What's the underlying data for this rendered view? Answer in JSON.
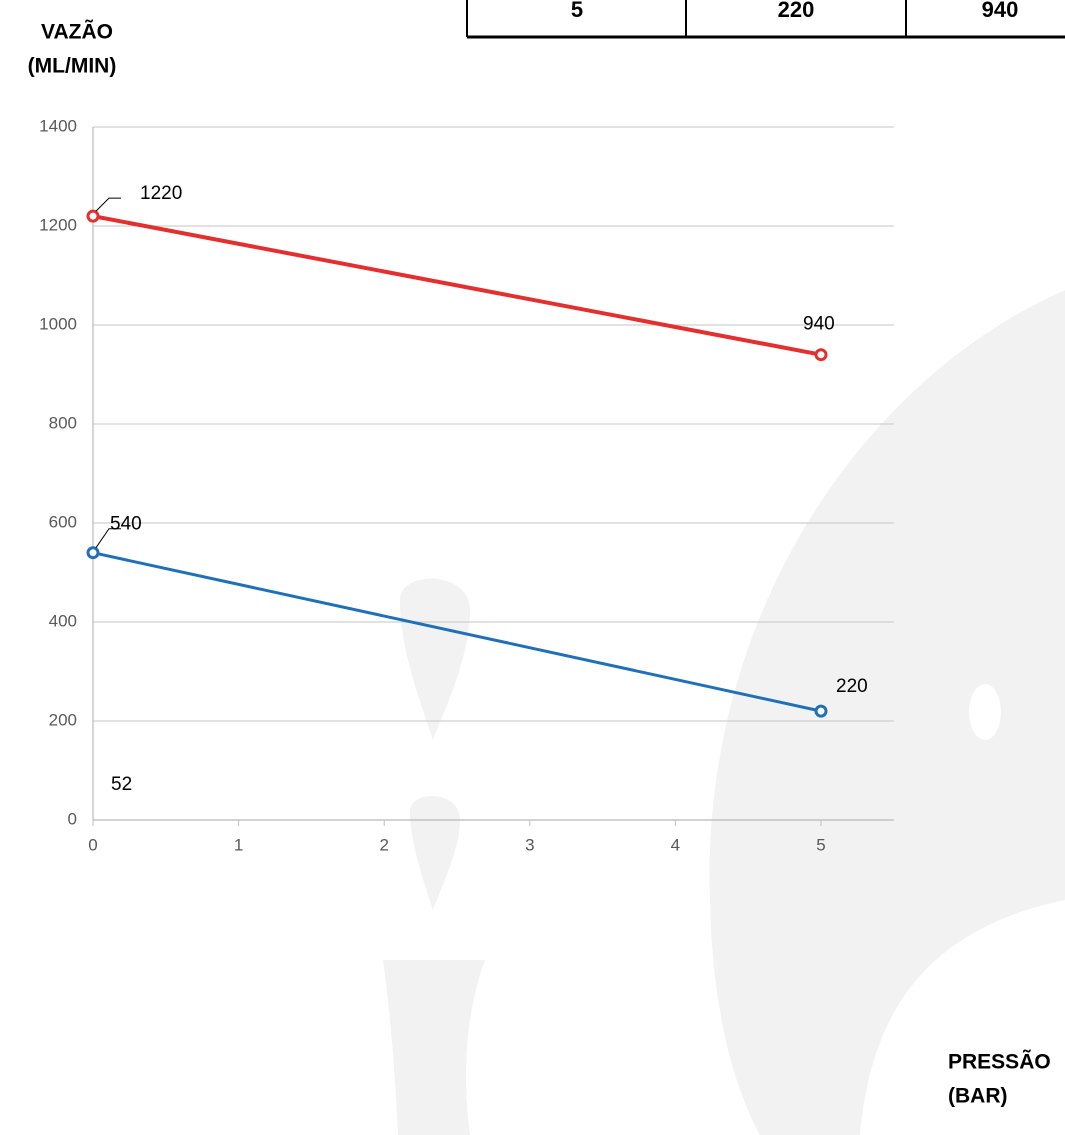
{
  "table": {
    "rows": [
      [
        "5",
        "220",
        "940"
      ]
    ]
  },
  "chart_data": {
    "type": "line",
    "y_label": [
      "VAZÃO",
      "(ML/MIN)"
    ],
    "x_label": [
      "PRESSÃO",
      "(BAR)"
    ],
    "annotations": [
      "52"
    ],
    "x": [
      0,
      5
    ],
    "series": [
      {
        "color": "#e3302f",
        "values": [
          1220,
          940
        ]
      },
      {
        "color": "#1f70b8",
        "values": [
          540,
          220
        ]
      }
    ],
    "xlim": [
      0,
      5.5
    ],
    "xticks": [
      0,
      1,
      2,
      3,
      4,
      5
    ],
    "ylim": [
      0,
      1400
    ],
    "yticks": [
      0,
      200,
      400,
      600,
      800,
      1000,
      1200,
      1400
    ],
    "grid": true
  }
}
